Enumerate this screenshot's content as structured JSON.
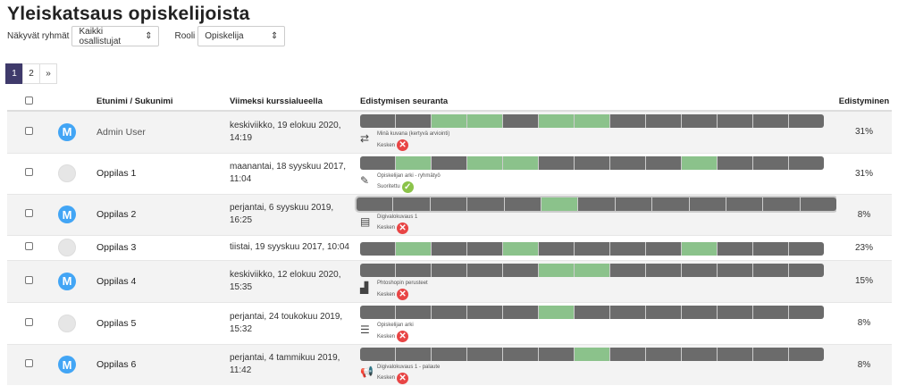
{
  "title": "Yleiskatsaus opiskelijoista",
  "filters": {
    "groups_label": "Näkyvät ryhmät",
    "groups_value": "Kaikki osallistujat",
    "role_label": "Rooli",
    "role_value": "Opiskelija"
  },
  "pagination": [
    "1",
    "2",
    "»"
  ],
  "columns": {
    "name": "Etunimi / Sukunimi",
    "last": "Viimeksi kurssialueella",
    "progress": "Edistymisen seuranta",
    "percent": "Edistyminen"
  },
  "colors": {
    "done": "#8bc28b",
    "todo": "#6b6b6b",
    "accent": "#3f3a6b"
  },
  "rows": [
    {
      "name": "Admin User",
      "avatar": "M",
      "last": "keskiviikko, 19 elokuu 2020, 14:19",
      "segments": [
        0,
        0,
        1,
        1,
        0,
        1,
        1,
        0,
        0,
        0,
        0,
        0,
        0
      ],
      "activity": "Minä kuvana (kertyvä arviointi)",
      "icon": "⇄",
      "status": "Kesken",
      "ok": false,
      "percent": "31%"
    },
    {
      "name": "Oppilas 1",
      "avatar": "",
      "last": "maanantai, 18 syyskuu 2017, 11:04",
      "segments": [
        0,
        1,
        0,
        1,
        1,
        0,
        0,
        0,
        0,
        1,
        0,
        0,
        0
      ],
      "activity": "Opiskelijan arki - ryhmätyö",
      "icon": "✎",
      "status": "Suoritettu",
      "ok": true,
      "percent": "31%"
    },
    {
      "name": "Oppilas 2",
      "avatar": "M",
      "last": "perjantai, 6 syyskuu 2019, 16:25",
      "segments": [
        0,
        0,
        0,
        0,
        0,
        1,
        0,
        0,
        0,
        0,
        0,
        0,
        0
      ],
      "activity": "Digivalokuvaus 1",
      "icon": "▤",
      "status": "Kesken",
      "ok": false,
      "percent": "8%",
      "hl": true
    },
    {
      "name": "Oppilas 3",
      "avatar": "",
      "last": "tiistai, 19 syyskuu 2017, 10:04",
      "segments": [
        0,
        1,
        0,
        0,
        1,
        0,
        0,
        0,
        0,
        1,
        0,
        0,
        0
      ],
      "percent": "23%"
    },
    {
      "name": "Oppilas 4",
      "avatar": "M",
      "last": "keskiviikko, 12 elokuu 2020, 15:35",
      "segments": [
        0,
        0,
        0,
        0,
        0,
        1,
        1,
        0,
        0,
        0,
        0,
        0,
        0
      ],
      "activity": "Phtoshopin perusteet",
      "icon": "▟",
      "status": "Kesken",
      "ok": false,
      "percent": "15%"
    },
    {
      "name": "Oppilas 5",
      "avatar": "",
      "last": "perjantai, 24 toukokuu 2019, 15:32",
      "segments": [
        0,
        0,
        0,
        0,
        0,
        1,
        0,
        0,
        0,
        0,
        0,
        0,
        0
      ],
      "activity": "Opiskelijan arki",
      "icon": "☰",
      "status": "Kesken",
      "ok": false,
      "percent": "8%"
    },
    {
      "name": "Oppilas 6",
      "avatar": "M",
      "last": "perjantai, 4 tammikuu 2019, 11:42",
      "segments": [
        0,
        0,
        0,
        0,
        0,
        0,
        1,
        0,
        0,
        0,
        0,
        0,
        0
      ],
      "activity": "Digivalokuvaus 1 - palaute",
      "icon": "📢",
      "status": "Kesken",
      "ok": false,
      "percent": "8%"
    }
  ]
}
